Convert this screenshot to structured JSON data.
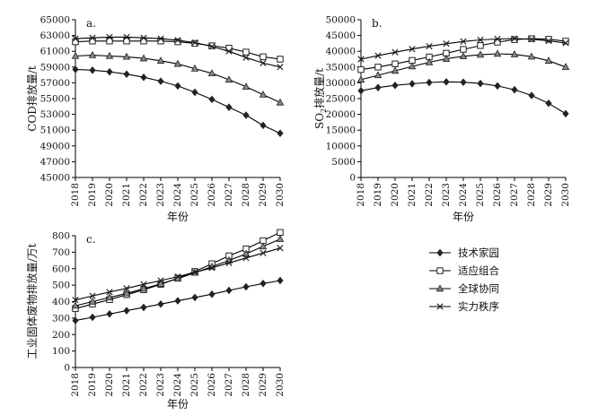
{
  "legend": {
    "items": [
      {
        "series": "技术家园",
        "marker": "diamond"
      },
      {
        "series": "适应组合",
        "marker": "square"
      },
      {
        "series": "全球协同",
        "marker": "triangle"
      },
      {
        "series": "实力秩序",
        "marker": "x"
      }
    ]
  },
  "chart_data": [
    {
      "type": "line",
      "panel_label": "a.",
      "ylabel": "COD排放量/t",
      "xlabel": "",
      "x": [
        2018,
        2019,
        2020,
        2021,
        2022,
        2023,
        2024,
        2025,
        2026,
        2027,
        2028,
        2029,
        2030
      ],
      "ylim": [
        45000,
        65000
      ],
      "yticks": [
        45000,
        47000,
        49000,
        51000,
        53000,
        55000,
        57000,
        59000,
        61000,
        63000,
        65000
      ],
      "grid": false,
      "series": [
        {
          "name": "技术家园",
          "marker": "diamond",
          "color": "#000000",
          "values": [
            58700,
            58600,
            58400,
            58100,
            57700,
            57200,
            56600,
            55800,
            54900,
            53900,
            52900,
            51600,
            50600
          ]
        },
        {
          "name": "适应组合",
          "marker": "square",
          "color": "#000000",
          "values": [
            62200,
            62300,
            62300,
            62300,
            62300,
            62300,
            62200,
            62000,
            61700,
            61400,
            60900,
            60300,
            60000
          ]
        },
        {
          "name": "全球协同",
          "marker": "triangle",
          "color": "#000000",
          "values": [
            60400,
            60500,
            60400,
            60300,
            60100,
            59800,
            59400,
            58800,
            58200,
            57400,
            56500,
            55500,
            54500
          ]
        },
        {
          "name": "实力秩序",
          "marker": "x",
          "color": "#000000",
          "values": [
            62600,
            62700,
            62800,
            62800,
            62700,
            62600,
            62400,
            62100,
            61600,
            61000,
            60200,
            59500,
            59000
          ]
        }
      ]
    },
    {
      "type": "line",
      "panel_label": "b.",
      "ylabel_parts": [
        "SO",
        "2",
        "排放量/t"
      ],
      "xlabel": "",
      "x": [
        2018,
        2019,
        2020,
        2021,
        2022,
        2023,
        2024,
        2025,
        2026,
        2027,
        2028,
        2029,
        2030
      ],
      "ylim": [
        0,
        50000
      ],
      "yticks": [
        0,
        5000,
        10000,
        15000,
        20000,
        25000,
        30000,
        35000,
        40000,
        45000,
        50000
      ],
      "grid": false,
      "series": [
        {
          "name": "技术家园",
          "marker": "diamond",
          "color": "#000000",
          "values": [
            27500,
            28500,
            29200,
            29700,
            30100,
            30300,
            30200,
            29800,
            29000,
            27800,
            26000,
            23500,
            20200
          ]
        },
        {
          "name": "适应组合",
          "marker": "square",
          "color": "#000000",
          "values": [
            34200,
            35000,
            36000,
            37100,
            38200,
            39400,
            40600,
            41800,
            42900,
            43700,
            44000,
            43800,
            43200
          ]
        },
        {
          "name": "全球协同",
          "marker": "triangle",
          "color": "#000000",
          "values": [
            31000,
            32400,
            33800,
            35200,
            36500,
            37600,
            38400,
            38900,
            39200,
            39000,
            38300,
            37000,
            35000
          ]
        },
        {
          "name": "实力秩序",
          "marker": "x",
          "color": "#000000",
          "values": [
            37500,
            38600,
            39700,
            40700,
            41600,
            42400,
            43100,
            43600,
            43900,
            44000,
            43800,
            43300,
            42600
          ]
        }
      ]
    },
    {
      "type": "line",
      "panel_label": "c.",
      "ylabel": "工业固体废物排放量/万t",
      "xlabel": "年份",
      "x": [
        2018,
        2019,
        2020,
        2021,
        2022,
        2023,
        2024,
        2025,
        2026,
        2027,
        2028,
        2029,
        2030
      ],
      "ylim": [
        0,
        800
      ],
      "yticks": [
        0,
        100,
        200,
        300,
        400,
        500,
        600,
        700,
        800
      ],
      "grid": false,
      "series": [
        {
          "name": "技术家园",
          "marker": "diamond",
          "color": "#000000",
          "values": [
            285,
            305,
            325,
            345,
            365,
            385,
            405,
            425,
            445,
            468,
            490,
            510,
            528
          ]
        },
        {
          "name": "适应组合",
          "marker": "square",
          "color": "#000000",
          "values": [
            358,
            385,
            412,
            442,
            472,
            505,
            542,
            583,
            630,
            678,
            720,
            770,
            820
          ]
        },
        {
          "name": "全球协同",
          "marker": "triangle",
          "color": "#000000",
          "values": [
            375,
            400,
            425,
            450,
            478,
            508,
            540,
            575,
            612,
            650,
            690,
            735,
            780
          ]
        },
        {
          "name": "实力秩序",
          "marker": "x",
          "color": "#000000",
          "values": [
            410,
            435,
            458,
            480,
            505,
            528,
            552,
            578,
            605,
            635,
            665,
            695,
            725
          ]
        }
      ]
    }
  ],
  "shared_xlabel": "年份"
}
